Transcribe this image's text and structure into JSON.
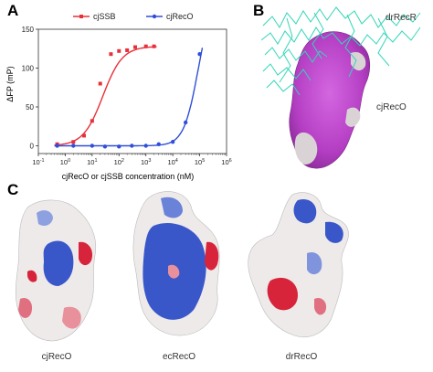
{
  "panels": {
    "a_letter": "A",
    "b_letter": "B",
    "c_letter": "C"
  },
  "panel_b": {
    "label_top": "drRecR",
    "label_mid": "cjRecO",
    "colors": {
      "ribbon": "#33d6b8",
      "surface_magenta": "#c84fd3",
      "surface_grey": "#d9d3d6"
    }
  },
  "panel_c": {
    "labels": [
      "cjRecO",
      "ecRecO",
      "drRecO"
    ],
    "colors": {
      "positive": "#3a57c9",
      "negative": "#d7243a",
      "neutral": "#eeeaea"
    }
  },
  "chart_data": {
    "type": "scatter",
    "title": "",
    "xlabel": "cjRecO or cjSSB concentration (nM)",
    "ylabel": "ΔFP (mP)",
    "xscale": "log",
    "xlim": [
      0.1,
      1000000
    ],
    "ylim": [
      -10,
      150
    ],
    "xticks": [
      {
        "v": 0.1,
        "base": "10",
        "exp": "-1"
      },
      {
        "v": 1,
        "base": "10",
        "exp": "0"
      },
      {
        "v": 10,
        "base": "10",
        "exp": "1"
      },
      {
        "v": 100,
        "base": "10",
        "exp": "2"
      },
      {
        "v": 1000,
        "base": "10",
        "exp": "3"
      },
      {
        "v": 10000,
        "base": "10",
        "exp": "4"
      },
      {
        "v": 100000,
        "base": "10",
        "exp": "5"
      },
      {
        "v": 1000000,
        "base": "10",
        "exp": "6"
      }
    ],
    "yticks": [
      0,
      50,
      100,
      150
    ],
    "legend_position": "top",
    "series": [
      {
        "name": "cjSSB",
        "color": "#e8303a",
        "marker": "square",
        "points": [
          [
            0.5,
            2
          ],
          [
            2,
            5
          ],
          [
            5,
            13
          ],
          [
            10,
            32
          ],
          [
            20,
            80
          ],
          [
            50,
            118
          ],
          [
            100,
            122
          ],
          [
            200,
            123
          ],
          [
            400,
            127
          ],
          [
            1000,
            128
          ],
          [
            2000,
            128
          ]
        ],
        "fit": {
          "bottom": 0,
          "top": 128,
          "ec50": 25,
          "hill": 1.2
        }
      },
      {
        "name": "cjRecO",
        "color": "#2f4fd8",
        "marker": "circle",
        "points": [
          [
            0.5,
            0
          ],
          [
            2,
            0
          ],
          [
            10,
            0
          ],
          [
            30,
            -1
          ],
          [
            100,
            -1
          ],
          [
            300,
            0
          ],
          [
            1000,
            0
          ],
          [
            3000,
            2
          ],
          [
            10000,
            5
          ],
          [
            30000,
            30
          ],
          [
            100000,
            118
          ]
        ],
        "fit": {
          "bottom": 0,
          "top": 200,
          "ec50": 90000,
          "hill": 1.6
        }
      }
    ]
  }
}
